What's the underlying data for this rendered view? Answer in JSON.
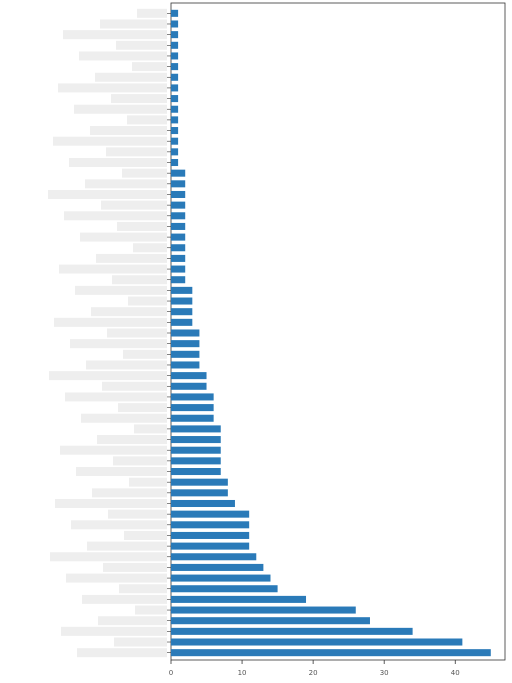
{
  "chart_data": {
    "type": "barh",
    "categories": [
      null,
      null,
      null,
      null,
      null,
      null,
      null,
      null,
      null,
      null,
      null,
      null,
      null,
      null,
      null,
      null,
      null,
      null,
      null,
      null,
      null,
      null,
      null,
      null,
      null,
      null,
      null,
      null,
      null,
      null,
      null,
      null,
      null,
      null,
      null,
      null,
      null,
      null,
      null,
      null,
      null,
      null,
      null,
      null,
      null,
      null,
      null,
      null,
      null,
      null,
      null,
      null,
      null,
      null,
      null,
      null,
      null,
      null,
      null,
      null,
      null
    ],
    "values": [
      1,
      1,
      1,
      1,
      1,
      1,
      1,
      1,
      1,
      1,
      1,
      1,
      1,
      1,
      1,
      2,
      2,
      2,
      2,
      2,
      2,
      2,
      2,
      2,
      2,
      2,
      3,
      3,
      3,
      3,
      4,
      4,
      4,
      4,
      5,
      5,
      6,
      6,
      6,
      7,
      7,
      7,
      7,
      7,
      8,
      8,
      9,
      11,
      11,
      11,
      11,
      12,
      13,
      14,
      15,
      19,
      26,
      28,
      34,
      41,
      45
    ],
    "color": "#2a7ab8",
    "xlim": [
      0,
      47
    ],
    "xticks": [
      0,
      10,
      20,
      30,
      40
    ]
  }
}
